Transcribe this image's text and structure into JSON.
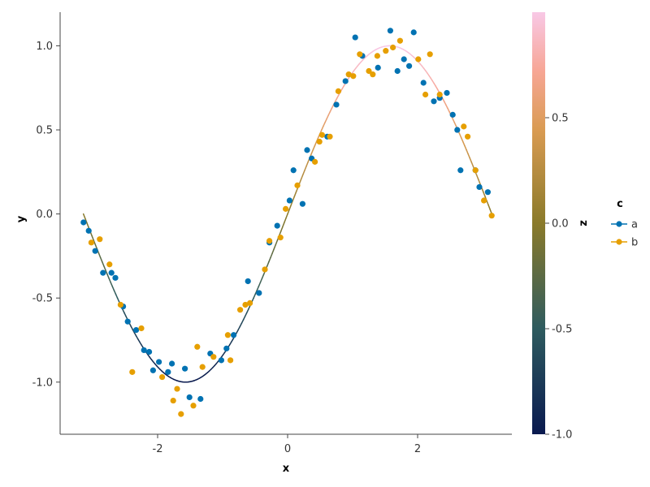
{
  "chart_data": {
    "type": "scatter",
    "xlabel": "x",
    "ylabel": "y",
    "xlim": [
      -3.5,
      3.45
    ],
    "ylim": [
      -1.31,
      1.2
    ],
    "x_ticks": [
      -2,
      0,
      2
    ],
    "x_tick_labels": [
      "-2",
      "0",
      "2"
    ],
    "y_ticks": [
      -1.0,
      -0.5,
      0.0,
      0.5,
      1.0
    ],
    "y_tick_labels": [
      "-1.0",
      "-0.5",
      "0.0",
      "0.5",
      "1.0"
    ],
    "grid": false,
    "colorbar": {
      "label": "z",
      "range": [
        -1.0,
        1.0
      ],
      "ticks": [
        -1.0,
        -0.5,
        0.0,
        0.5
      ],
      "tick_labels": [
        "-1.0",
        "-0.5",
        "0.0",
        "0.5"
      ],
      "colormap": [
        "#0a1a4f",
        "#2e5b5f",
        "#8a7a2a",
        "#d99b52",
        "#f7a695",
        "#f8c8e6"
      ]
    },
    "curve": {
      "description": "y = sin(x)",
      "x_range": [
        -3.14159,
        3.14159
      ],
      "color_by": "z"
    },
    "legend": {
      "title": "c",
      "placement": "right",
      "entries": [
        "a",
        "b"
      ]
    },
    "series": [
      {
        "name": "a",
        "color": "#0072b2",
        "points": [
          [
            -3.14,
            -0.05
          ],
          [
            -3.06,
            -0.1
          ],
          [
            -2.96,
            -0.22
          ],
          [
            -2.84,
            -0.35
          ],
          [
            -2.71,
            -0.35
          ],
          [
            -2.65,
            -0.38
          ],
          [
            -2.53,
            -0.55
          ],
          [
            -2.46,
            -0.64
          ],
          [
            -2.33,
            -0.69
          ],
          [
            -2.21,
            -0.81
          ],
          [
            -2.13,
            -0.82
          ],
          [
            -2.07,
            -0.93
          ],
          [
            -1.98,
            -0.88
          ],
          [
            -1.84,
            -0.94
          ],
          [
            -1.78,
            -0.89
          ],
          [
            -1.58,
            -0.92
          ],
          [
            -1.51,
            -1.09
          ],
          [
            -1.34,
            -1.1
          ],
          [
            -1.19,
            -0.83
          ],
          [
            -1.02,
            -0.87
          ],
          [
            -0.94,
            -0.8
          ],
          [
            -0.83,
            -0.72
          ],
          [
            -0.61,
            -0.4
          ],
          [
            -0.44,
            -0.47
          ],
          [
            -0.28,
            -0.17
          ],
          [
            -0.16,
            -0.07
          ],
          [
            0.03,
            0.08
          ],
          [
            0.09,
            0.26
          ],
          [
            0.23,
            0.06
          ],
          [
            0.3,
            0.38
          ],
          [
            0.37,
            0.33
          ],
          [
            0.61,
            0.46
          ],
          [
            0.75,
            0.65
          ],
          [
            0.89,
            0.79
          ],
          [
            1.04,
            1.05
          ],
          [
            1.15,
            0.94
          ],
          [
            1.39,
            0.87
          ],
          [
            1.58,
            1.09
          ],
          [
            1.69,
            0.85
          ],
          [
            1.79,
            0.92
          ],
          [
            1.87,
            0.88
          ],
          [
            1.94,
            1.08
          ],
          [
            2.09,
            0.78
          ],
          [
            2.25,
            0.67
          ],
          [
            2.34,
            0.69
          ],
          [
            2.45,
            0.72
          ],
          [
            2.54,
            0.59
          ],
          [
            2.61,
            0.5
          ],
          [
            2.66,
            0.26
          ],
          [
            2.89,
            0.26
          ],
          [
            2.95,
            0.16
          ],
          [
            3.08,
            0.13
          ]
        ]
      },
      {
        "name": "b",
        "color": "#e69f00",
        "points": [
          [
            -3.02,
            -0.17
          ],
          [
            -2.89,
            -0.15
          ],
          [
            -2.74,
            -0.3
          ],
          [
            -2.57,
            -0.54
          ],
          [
            -2.39,
            -0.94
          ],
          [
            -2.25,
            -0.68
          ],
          [
            -1.93,
            -0.97
          ],
          [
            -1.76,
            -1.11
          ],
          [
            -1.7,
            -1.04
          ],
          [
            -1.64,
            -1.19
          ],
          [
            -1.45,
            -1.14
          ],
          [
            -1.39,
            -0.79
          ],
          [
            -1.31,
            -0.91
          ],
          [
            -1.14,
            -0.85
          ],
          [
            -0.92,
            -0.72
          ],
          [
            -0.88,
            -0.87
          ],
          [
            -0.73,
            -0.57
          ],
          [
            -0.65,
            -0.54
          ],
          [
            -0.58,
            -0.53
          ],
          [
            -0.35,
            -0.33
          ],
          [
            -0.28,
            -0.16
          ],
          [
            -0.11,
            -0.14
          ],
          [
            -0.03,
            0.03
          ],
          [
            0.15,
            0.17
          ],
          [
            0.42,
            0.31
          ],
          [
            0.49,
            0.43
          ],
          [
            0.53,
            0.47
          ],
          [
            0.65,
            0.46
          ],
          [
            0.78,
            0.73
          ],
          [
            0.94,
            0.83
          ],
          [
            1.01,
            0.82
          ],
          [
            1.11,
            0.95
          ],
          [
            1.25,
            0.85
          ],
          [
            1.31,
            0.83
          ],
          [
            1.38,
            0.94
          ],
          [
            1.51,
            0.97
          ],
          [
            1.62,
            0.99
          ],
          [
            1.73,
            1.03
          ],
          [
            2.01,
            0.92
          ],
          [
            2.12,
            0.71
          ],
          [
            2.19,
            0.95
          ],
          [
            2.34,
            0.71
          ],
          [
            2.71,
            0.52
          ],
          [
            2.77,
            0.46
          ],
          [
            2.89,
            0.26
          ],
          [
            3.02,
            0.08
          ],
          [
            3.14,
            -0.01
          ]
        ]
      }
    ]
  }
}
